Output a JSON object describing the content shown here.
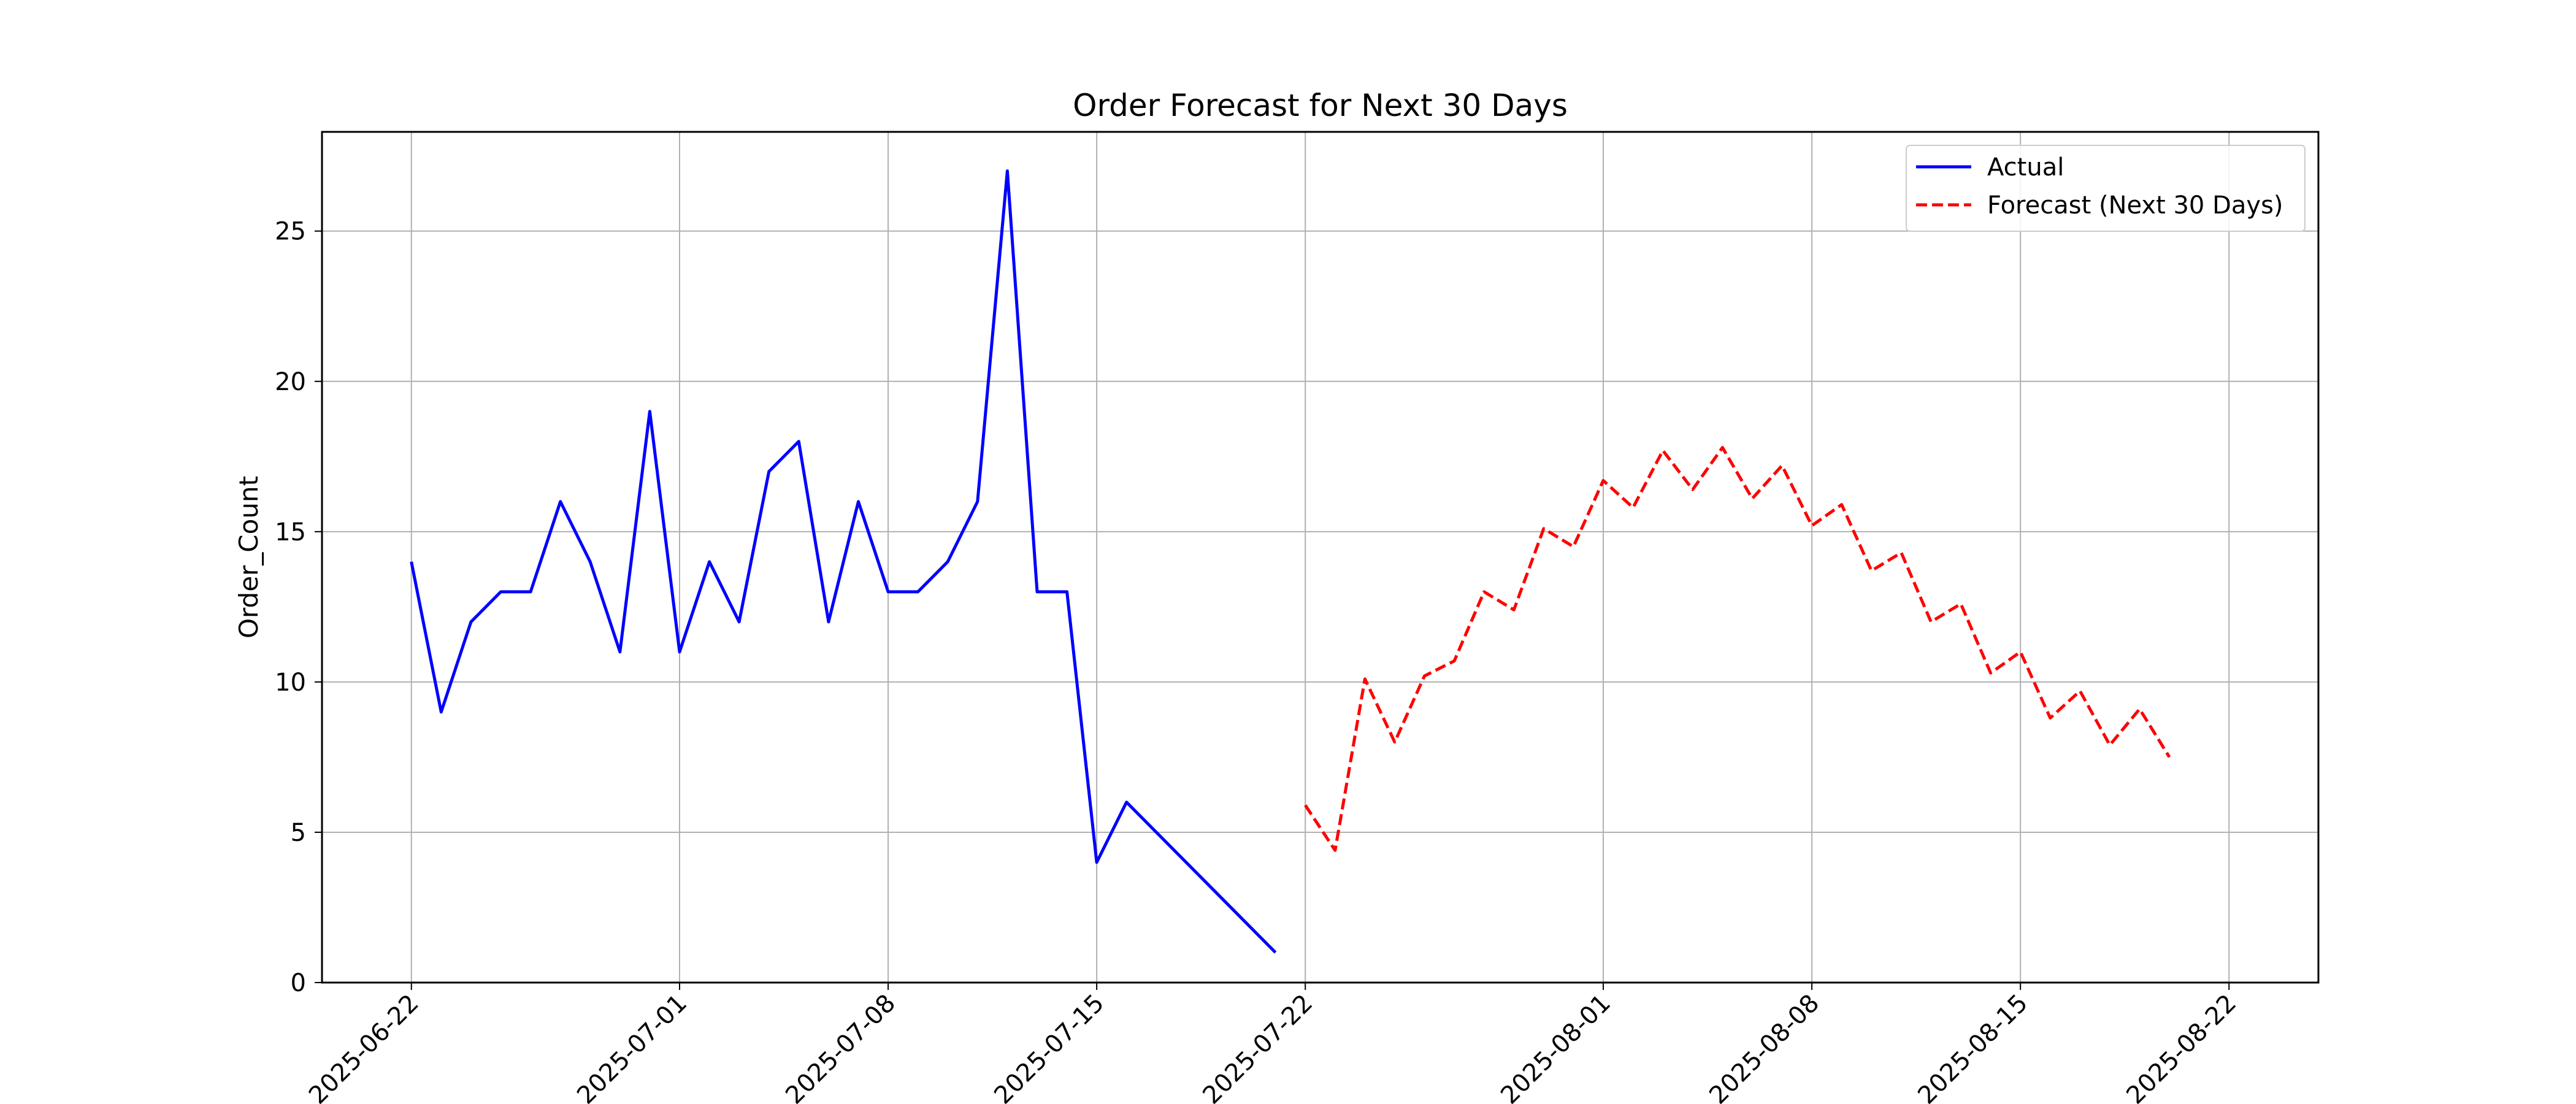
{
  "chart_data": {
    "type": "line",
    "title": "Order Forecast for Next 30 Days",
    "xlabel": "",
    "ylabel": "Order_Count",
    "x_axis": {
      "type": "date",
      "range": [
        "2025-06-19",
        "2025-08-25"
      ],
      "ticks": [
        "2025-06-22",
        "2025-07-01",
        "2025-07-08",
        "2025-07-15",
        "2025-07-22",
        "2025-08-01",
        "2025-08-08",
        "2025-08-15",
        "2025-08-22"
      ]
    },
    "y_axis": {
      "range": [
        0,
        28.3
      ],
      "ticks": [
        0,
        5,
        10,
        15,
        20,
        25
      ]
    },
    "grid": true,
    "legend_position": "top-right",
    "series": [
      {
        "name": "Actual",
        "color": "#0000ff",
        "style": "solid",
        "points": [
          {
            "date": "2025-06-22",
            "value": 14
          },
          {
            "date": "2025-06-23",
            "value": 9
          },
          {
            "date": "2025-06-24",
            "value": 12
          },
          {
            "date": "2025-06-25",
            "value": 13
          },
          {
            "date": "2025-06-26",
            "value": 13
          },
          {
            "date": "2025-06-27",
            "value": 16
          },
          {
            "date": "2025-06-28",
            "value": 14
          },
          {
            "date": "2025-06-29",
            "value": 11
          },
          {
            "date": "2025-06-30",
            "value": 19
          },
          {
            "date": "2025-07-01",
            "value": 11
          },
          {
            "date": "2025-07-02",
            "value": 14
          },
          {
            "date": "2025-07-03",
            "value": 12
          },
          {
            "date": "2025-07-04",
            "value": 17
          },
          {
            "date": "2025-07-05",
            "value": 18
          },
          {
            "date": "2025-07-06",
            "value": 12
          },
          {
            "date": "2025-07-07",
            "value": 16
          },
          {
            "date": "2025-07-08",
            "value": 13
          },
          {
            "date": "2025-07-09",
            "value": 13
          },
          {
            "date": "2025-07-10",
            "value": 14
          },
          {
            "date": "2025-07-11",
            "value": 16
          },
          {
            "date": "2025-07-12",
            "value": 27
          },
          {
            "date": "2025-07-13",
            "value": 13
          },
          {
            "date": "2025-07-14",
            "value": 13
          },
          {
            "date": "2025-07-15",
            "value": 4
          },
          {
            "date": "2025-07-16",
            "value": 6
          },
          {
            "date": "2025-07-21",
            "value": 1
          }
        ]
      },
      {
        "name": "Forecast (Next 30 Days)",
        "color": "#ff0000",
        "style": "dashed",
        "points": [
          {
            "date": "2025-07-22",
            "value": 5.9
          },
          {
            "date": "2025-07-23",
            "value": 4.4
          },
          {
            "date": "2025-07-24",
            "value": 10.1
          },
          {
            "date": "2025-07-25",
            "value": 8.0
          },
          {
            "date": "2025-07-26",
            "value": 10.2
          },
          {
            "date": "2025-07-27",
            "value": 10.7
          },
          {
            "date": "2025-07-28",
            "value": 13.0
          },
          {
            "date": "2025-07-29",
            "value": 12.4
          },
          {
            "date": "2025-07-30",
            "value": 15.1
          },
          {
            "date": "2025-07-31",
            "value": 14.5
          },
          {
            "date": "2025-08-01",
            "value": 16.7
          },
          {
            "date": "2025-08-02",
            "value": 15.8
          },
          {
            "date": "2025-08-03",
            "value": 17.7
          },
          {
            "date": "2025-08-04",
            "value": 16.4
          },
          {
            "date": "2025-08-05",
            "value": 17.8
          },
          {
            "date": "2025-08-06",
            "value": 16.1
          },
          {
            "date": "2025-08-07",
            "value": 17.2
          },
          {
            "date": "2025-08-08",
            "value": 15.2
          },
          {
            "date": "2025-08-09",
            "value": 15.9
          },
          {
            "date": "2025-08-10",
            "value": 13.7
          },
          {
            "date": "2025-08-11",
            "value": 14.3
          },
          {
            "date": "2025-08-12",
            "value": 12.0
          },
          {
            "date": "2025-08-13",
            "value": 12.6
          },
          {
            "date": "2025-08-14",
            "value": 10.3
          },
          {
            "date": "2025-08-15",
            "value": 11.0
          },
          {
            "date": "2025-08-16",
            "value": 8.8
          },
          {
            "date": "2025-08-17",
            "value": 9.7
          },
          {
            "date": "2025-08-18",
            "value": 7.9
          },
          {
            "date": "2025-08-19",
            "value": 9.1
          },
          {
            "date": "2025-08-20",
            "value": 7.5
          }
        ]
      }
    ]
  }
}
